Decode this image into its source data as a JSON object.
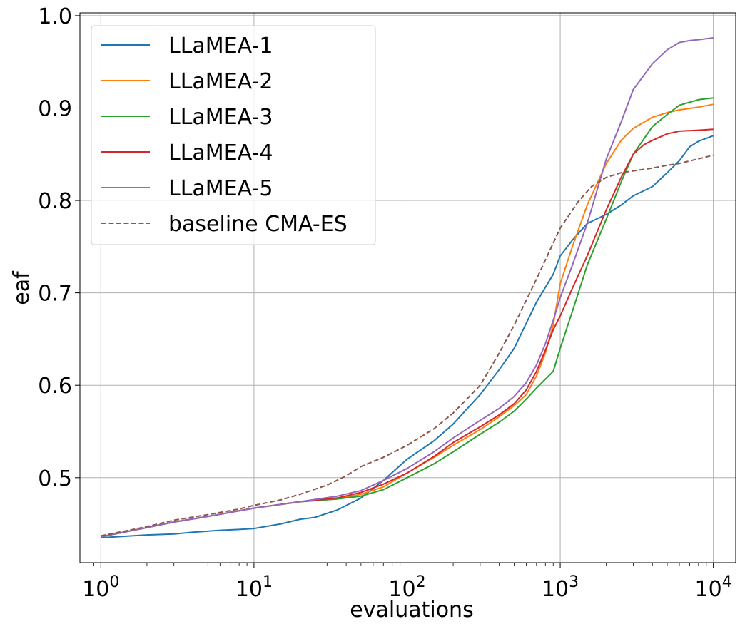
{
  "chart_data": {
    "type": "line",
    "title": "",
    "xlabel": "evaluations",
    "ylabel": "eaf",
    "xscale": "log",
    "xlim": [
      0.73,
      14000
    ],
    "ylim": [
      0.408,
      1.003
    ],
    "grid": true,
    "legend_position": "top-left",
    "xticks": [
      {
        "value": 1,
        "base": "10",
        "exp": "0"
      },
      {
        "value": 10,
        "base": "10",
        "exp": "1"
      },
      {
        "value": 100,
        "base": "10",
        "exp": "2"
      },
      {
        "value": 1000,
        "base": "10",
        "exp": "3"
      },
      {
        "value": 10000,
        "base": "10",
        "exp": "4"
      }
    ],
    "yticks": [
      {
        "value": 0.5,
        "label": "0.5"
      },
      {
        "value": 0.6,
        "label": "0.6"
      },
      {
        "value": 0.7,
        "label": "0.7"
      },
      {
        "value": 0.8,
        "label": "0.8"
      },
      {
        "value": 0.9,
        "label": "0.9"
      },
      {
        "value": 1.0,
        "label": "1.0"
      }
    ],
    "series": [
      {
        "name": "LLaMEA-1",
        "color": "#1f77b4",
        "dash": false,
        "x": [
          1,
          2,
          3,
          4,
          6,
          8,
          10,
          15,
          20,
          25,
          35,
          50,
          70,
          100,
          150,
          200,
          300,
          400,
          500,
          700,
          900,
          1000,
          1200,
          1500,
          2000,
          2500,
          3000,
          4000,
          5000,
          6000,
          7000,
          8000,
          10000
        ],
        "y": [
          0.435,
          0.438,
          0.439,
          0.441,
          0.443,
          0.444,
          0.445,
          0.45,
          0.455,
          0.457,
          0.465,
          0.478,
          0.497,
          0.52,
          0.54,
          0.558,
          0.59,
          0.617,
          0.64,
          0.69,
          0.72,
          0.74,
          0.757,
          0.775,
          0.785,
          0.795,
          0.805,
          0.815,
          0.83,
          0.843,
          0.858,
          0.864,
          0.87
        ]
      },
      {
        "name": "LLaMEA-2",
        "color": "#ff7f0e",
        "dash": false,
        "x": [
          1,
          2,
          3,
          5,
          10,
          20,
          35,
          50,
          70,
          100,
          150,
          200,
          300,
          400,
          500,
          600,
          700,
          800,
          900,
          1000,
          1200,
          1500,
          2000,
          2500,
          3000,
          4000,
          5000,
          6000,
          8000,
          10000
        ],
        "y": [
          0.436,
          0.446,
          0.452,
          0.458,
          0.467,
          0.474,
          0.477,
          0.482,
          0.49,
          0.505,
          0.522,
          0.535,
          0.552,
          0.566,
          0.578,
          0.59,
          0.61,
          0.635,
          0.665,
          0.71,
          0.75,
          0.795,
          0.84,
          0.865,
          0.878,
          0.89,
          0.895,
          0.898,
          0.901,
          0.904
        ]
      },
      {
        "name": "LLaMEA-3",
        "color": "#2ca02c",
        "dash": false,
        "x": [
          1,
          2,
          3,
          5,
          10,
          20,
          35,
          50,
          70,
          100,
          150,
          200,
          300,
          400,
          500,
          600,
          700,
          900,
          1000,
          1200,
          1500,
          2000,
          2500,
          3000,
          4000,
          5000,
          6000,
          8000,
          10000
        ],
        "y": [
          0.436,
          0.446,
          0.452,
          0.458,
          0.467,
          0.474,
          0.477,
          0.48,
          0.487,
          0.5,
          0.515,
          0.528,
          0.547,
          0.56,
          0.572,
          0.585,
          0.597,
          0.615,
          0.64,
          0.68,
          0.73,
          0.78,
          0.82,
          0.85,
          0.88,
          0.893,
          0.903,
          0.909,
          0.911
        ]
      },
      {
        "name": "LLaMEA-4",
        "color": "#d62728",
        "dash": false,
        "x": [
          1,
          2,
          3,
          5,
          10,
          20,
          35,
          50,
          70,
          100,
          150,
          200,
          300,
          400,
          500,
          600,
          700,
          800,
          900,
          1000,
          1200,
          1500,
          2000,
          2500,
          3000,
          3500,
          4000,
          5000,
          6000,
          8000,
          10000
        ],
        "y": [
          0.436,
          0.446,
          0.452,
          0.458,
          0.467,
          0.474,
          0.478,
          0.484,
          0.493,
          0.505,
          0.523,
          0.538,
          0.555,
          0.568,
          0.58,
          0.595,
          0.615,
          0.638,
          0.66,
          0.675,
          0.705,
          0.74,
          0.79,
          0.825,
          0.85,
          0.86,
          0.865,
          0.872,
          0.875,
          0.876,
          0.877
        ]
      },
      {
        "name": "LLaMEA-5",
        "color": "#9467bd",
        "dash": false,
        "x": [
          1,
          2,
          3,
          5,
          10,
          20,
          35,
          50,
          70,
          100,
          150,
          200,
          300,
          400,
          500,
          600,
          700,
          800,
          900,
          1000,
          1200,
          1500,
          2000,
          2500,
          3000,
          4000,
          5000,
          6000,
          7000,
          8000,
          10000
        ],
        "y": [
          0.436,
          0.446,
          0.452,
          0.458,
          0.467,
          0.474,
          0.48,
          0.486,
          0.497,
          0.51,
          0.528,
          0.543,
          0.562,
          0.575,
          0.588,
          0.603,
          0.622,
          0.645,
          0.67,
          0.695,
          0.73,
          0.775,
          0.845,
          0.885,
          0.92,
          0.948,
          0.963,
          0.971,
          0.973,
          0.974,
          0.976
        ]
      },
      {
        "name": "baseline CMA-ES",
        "color": "#8c564b",
        "dash": true,
        "x": [
          1,
          2,
          3,
          5,
          8,
          10,
          15,
          20,
          30,
          40,
          50,
          70,
          100,
          150,
          200,
          300,
          400,
          500,
          700,
          1000,
          1300,
          1600,
          2000,
          2500,
          3000,
          4000,
          5000,
          6000,
          8000,
          10000
        ],
        "y": [
          0.437,
          0.447,
          0.454,
          0.46,
          0.466,
          0.47,
          0.476,
          0.482,
          0.492,
          0.502,
          0.512,
          0.522,
          0.535,
          0.553,
          0.57,
          0.6,
          0.635,
          0.665,
          0.715,
          0.77,
          0.798,
          0.815,
          0.825,
          0.83,
          0.832,
          0.835,
          0.838,
          0.84,
          0.845,
          0.849
        ]
      }
    ]
  }
}
